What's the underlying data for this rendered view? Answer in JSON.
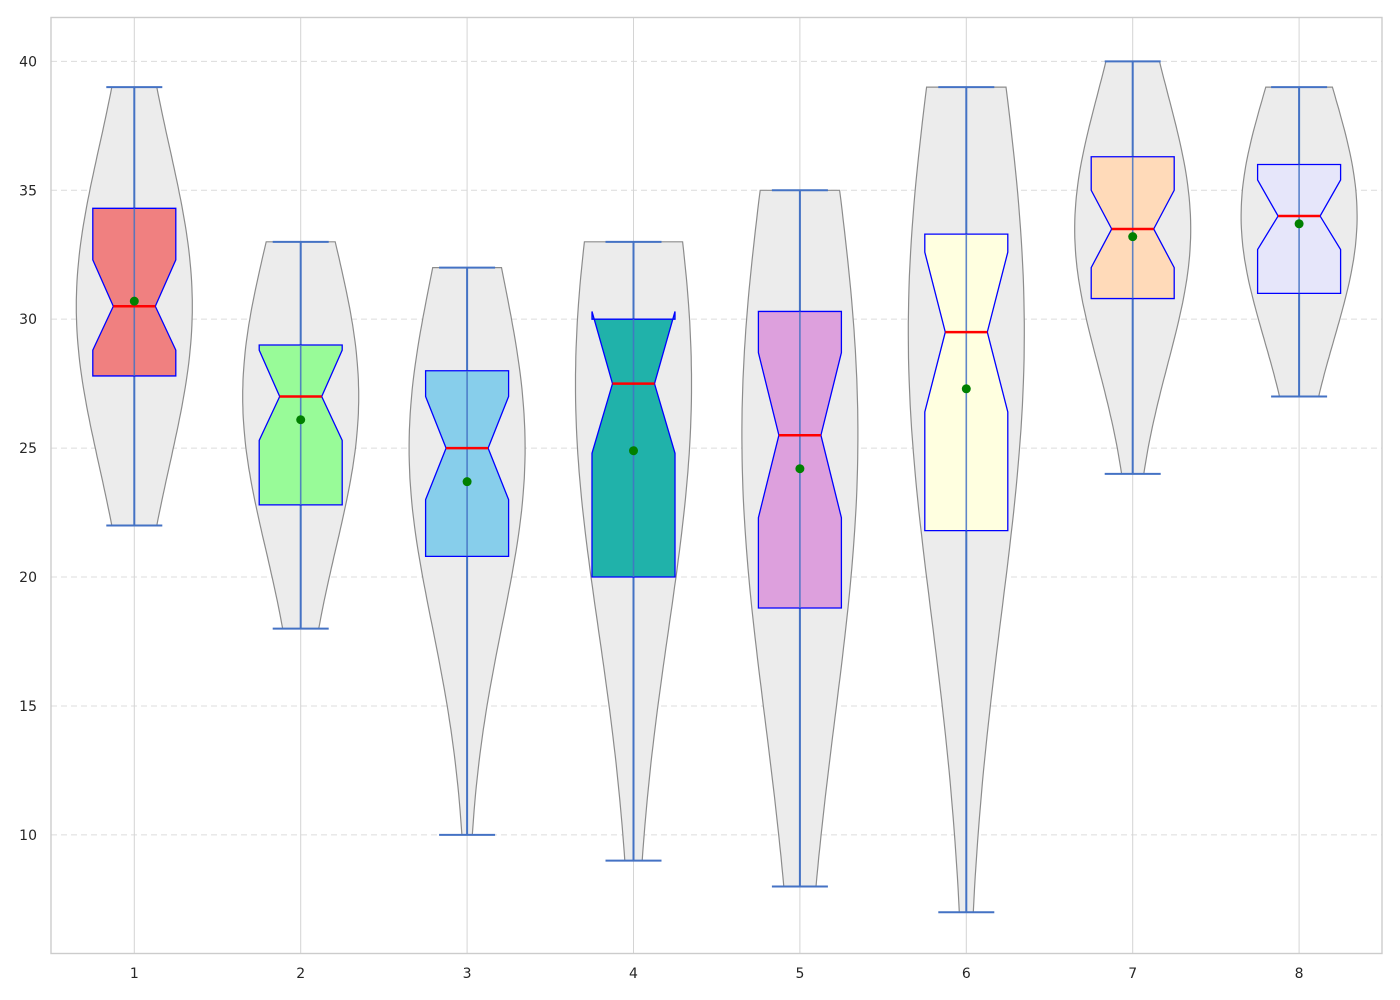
{
  "chart_data": {
    "type": "violin",
    "title": "",
    "xlabel": "",
    "ylabel": "",
    "categories": [
      "1",
      "2",
      "3",
      "4",
      "5",
      "6",
      "7",
      "8"
    ],
    "yticks": [
      "10",
      "15",
      "20",
      "25",
      "30",
      "35",
      "40"
    ],
    "ylim": [
      5.4,
      41.7
    ],
    "grid": "horizontal dashed + vertical solid",
    "legend": "none",
    "colors": {
      "violin_fill": "#ececec",
      "violin_edge": "#8c8c8c",
      "whisker": "#4472c4",
      "box_edge": "#0000ff",
      "median": "#ff0000",
      "mean_marker": "#008000",
      "grid": "#d9d9d9"
    },
    "series": [
      {
        "category": "1",
        "min": 22,
        "q1": 27.8,
        "median": 30.5,
        "q3": 34.3,
        "max": 39,
        "mean": 30.7,
        "notch": [
          28.8,
          32.3
        ],
        "fill": "#f08080"
      },
      {
        "category": "2",
        "min": 18,
        "q1": 22.8,
        "median": 27,
        "q3": 29,
        "max": 33,
        "mean": 26.1,
        "notch": [
          25.3,
          28.8
        ],
        "fill": "#98fb98"
      },
      {
        "category": "3",
        "min": 10,
        "q1": 20.8,
        "median": 25,
        "q3": 28,
        "max": 32,
        "mean": 23.7,
        "notch": [
          23.0,
          27.0
        ],
        "fill": "#87ceeb"
      },
      {
        "category": "4",
        "min": 9,
        "q1": 20,
        "median": 27.5,
        "q3": 30,
        "max": 33,
        "mean": 24.9,
        "notch": [
          24.8,
          30.3
        ],
        "fill": "#20b2aa"
      },
      {
        "category": "5",
        "min": 8,
        "q1": 18.8,
        "median": 25.5,
        "q3": 30.3,
        "max": 35,
        "mean": 24.2,
        "notch": [
          22.3,
          28.7
        ],
        "fill": "#dda0dd"
      },
      {
        "category": "6",
        "min": 7,
        "q1": 21.8,
        "median": 29.5,
        "q3": 33.3,
        "max": 39,
        "mean": 27.3,
        "notch": [
          26.4,
          32.6
        ],
        "fill": "#ffffe0"
      },
      {
        "category": "7",
        "min": 24,
        "q1": 30.8,
        "median": 33.5,
        "q3": 36.3,
        "max": 40,
        "mean": 33.2,
        "notch": [
          32.0,
          35.0
        ],
        "fill": "#ffdab9"
      },
      {
        "category": "8",
        "min": 27,
        "q1": 31,
        "median": 34,
        "q3": 36,
        "max": 39,
        "mean": 33.7,
        "notch": [
          32.7,
          35.4
        ],
        "fill": "#e6e6fa"
      }
    ]
  }
}
